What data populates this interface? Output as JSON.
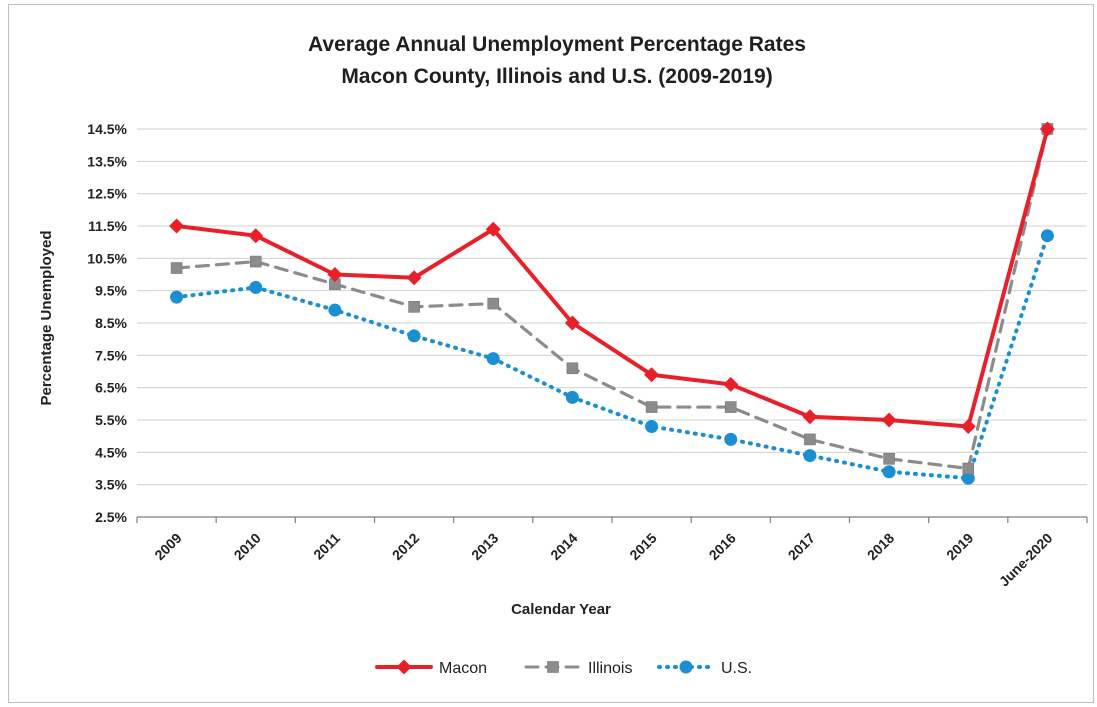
{
  "chart_data": {
    "type": "line",
    "title": "Average Annual Unemployment Percentage Rates",
    "subtitle": "Macon County, Illinois and U.S. (2009-2019)",
    "xlabel": "Calendar Year",
    "ylabel": "Percentage Unemployed",
    "categories": [
      "2009",
      "2010",
      "2011",
      "2012",
      "2013",
      "2014",
      "2015",
      "2016",
      "2017",
      "2018",
      "2019",
      "June-2020"
    ],
    "yticks": [
      "2.5%",
      "3.5%",
      "4.5%",
      "5.5%",
      "6.5%",
      "7.5%",
      "8.5%",
      "9.5%",
      "10.5%",
      "11.5%",
      "12.5%",
      "13.5%",
      "14.5%"
    ],
    "ylim": [
      2.5,
      14.5
    ],
    "grid": true,
    "legend_position": "bottom",
    "series": [
      {
        "name": "Macon",
        "color": "#e8202a",
        "line_style": "solid",
        "marker": "diamond",
        "values": [
          11.5,
          11.2,
          10.0,
          9.9,
          11.4,
          8.5,
          6.9,
          6.6,
          5.6,
          5.5,
          5.3,
          14.5
        ]
      },
      {
        "name": "Illinois",
        "color": "#8c8c8c",
        "line_style": "dashed",
        "marker": "square",
        "values": [
          10.2,
          10.4,
          9.7,
          9.0,
          9.1,
          7.1,
          5.9,
          5.9,
          4.9,
          4.3,
          4.0,
          14.5
        ]
      },
      {
        "name": "U.S.",
        "color": "#1b8fd2",
        "line_style": "dotted",
        "marker": "circle",
        "values": [
          9.3,
          9.6,
          8.9,
          8.1,
          7.4,
          6.2,
          5.3,
          4.9,
          4.4,
          3.9,
          3.7,
          11.2
        ]
      }
    ]
  }
}
